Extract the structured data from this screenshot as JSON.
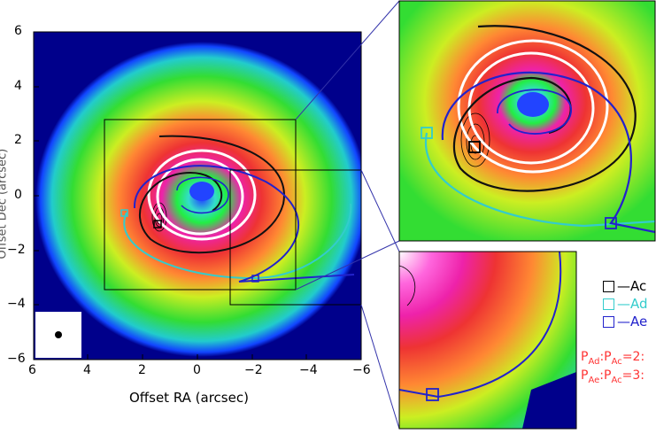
{
  "axes": {
    "xlabel": "Offset RA (arcsec)",
    "ylabel": "Offset Dec (arcsec)",
    "xticks": [
      "6",
      "4",
      "2",
      "0",
      "−2",
      "−4",
      "−6"
    ],
    "yticks": [
      "6",
      "4",
      "2",
      "0",
      "−2",
      "−4",
      "−6"
    ]
  },
  "legend": {
    "items": [
      {
        "label": "—Ac",
        "color": "#000000"
      },
      {
        "label": "—Ad",
        "color": "#33cccc"
      },
      {
        "label": "—Ae",
        "color": "#2222cc"
      }
    ]
  },
  "ratios": {
    "line1": "P",
    "line1_sub1": "Ad",
    "line1_mid": ":P",
    "line1_sub2": "Ac",
    "line1_end": "=2:",
    "line2": "P",
    "line2_sub1": "Ae",
    "line2_mid": ":P",
    "line2_sub2": "Ac",
    "line2_end": "=3:"
  },
  "colors": {
    "background_disk": "#00008b",
    "ring_green": "#33dd33",
    "ring_yellow": "#ccee22",
    "ring_red": "#ee3333",
    "ring_magenta": "#ee22aa",
    "center_blue": "#2244ff"
  }
}
